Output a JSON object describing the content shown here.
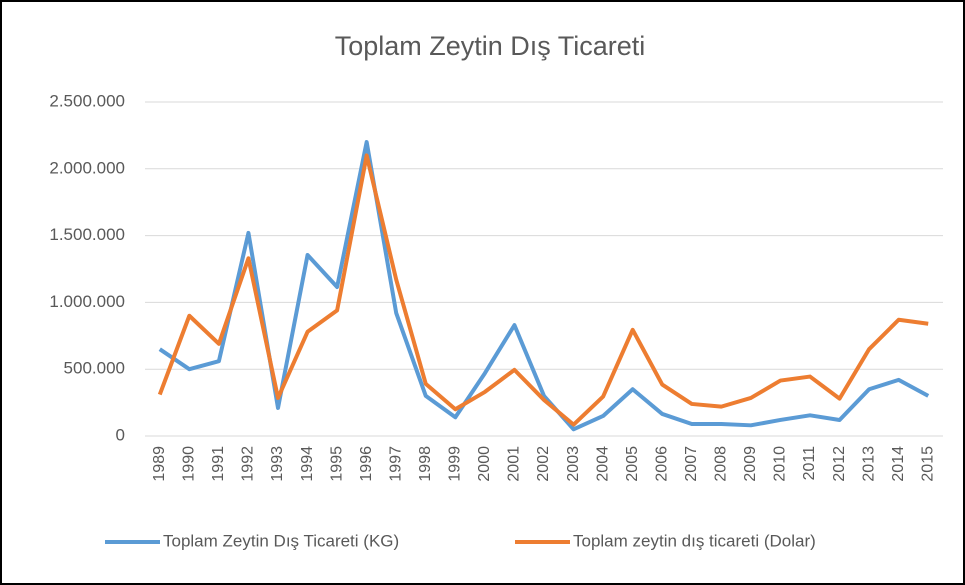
{
  "chart_data": {
    "type": "line",
    "title": "Toplam Zeytin Dış Ticareti",
    "categories": [
      "1989",
      "1990",
      "1991",
      "1992",
      "1993",
      "1994",
      "1995",
      "1996",
      "1997",
      "1998",
      "1999",
      "2000",
      "2001",
      "2002",
      "2003",
      "2004",
      "2005",
      "2006",
      "2007",
      "2008",
      "2009",
      "2010",
      "2011",
      "2012",
      "2013",
      "2014",
      "2015"
    ],
    "series": [
      {
        "name": "Toplam Zeytin Dış Ticareti (KG)",
        "color": "#5b9bd5",
        "values": [
          650000,
          500000,
          560000,
          1520000,
          210000,
          1355000,
          1115000,
          2200000,
          920000,
          300000,
          140000,
          470000,
          830000,
          300000,
          50000,
          150000,
          350000,
          165000,
          90000,
          90000,
          80000,
          120000,
          155000,
          120000,
          350000,
          420000,
          300000
        ]
      },
      {
        "name": "Toplam zeytin dış ticareti (Dolar)",
        "color": "#ed7d31",
        "values": [
          310000,
          900000,
          690000,
          1330000,
          285000,
          780000,
          940000,
          2100000,
          1170000,
          390000,
          200000,
          330000,
          495000,
          270000,
          85000,
          295000,
          795000,
          385000,
          240000,
          220000,
          285000,
          415000,
          445000,
          280000,
          650000,
          870000,
          840000
        ]
      }
    ],
    "ylim": [
      0,
      2500000
    ],
    "yticks": [
      0,
      {
        "value": 500000,
        "label": "500.000"
      },
      {
        "value": 1000000,
        "label": "1.000.000"
      },
      {
        "value": 1500000,
        "label": "1.500.000"
      },
      {
        "value": 2000000,
        "label": "2.000.000"
      },
      {
        "value": 2500000,
        "label": "2.500.000"
      }
    ],
    "grid": true,
    "legend": "bottom"
  }
}
